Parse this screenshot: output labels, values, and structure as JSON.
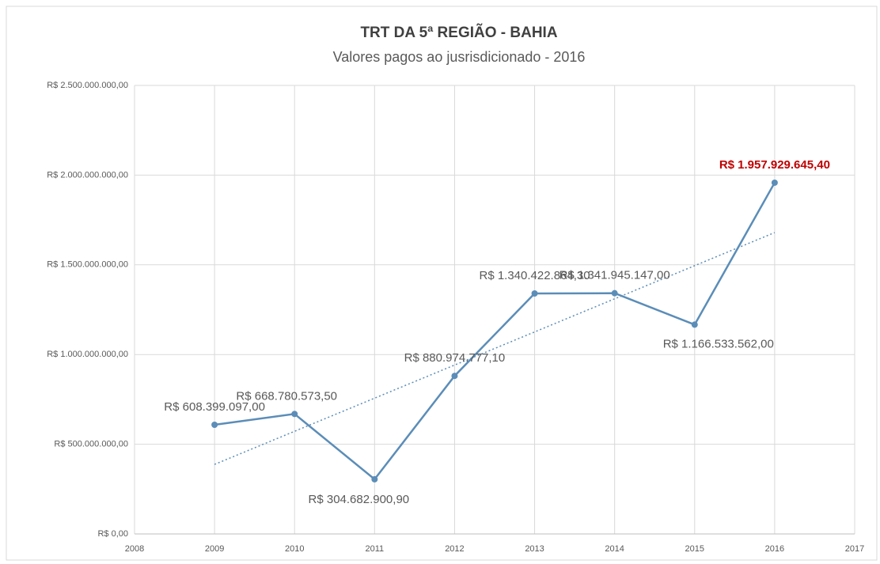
{
  "chart_data": {
    "type": "line",
    "title": "TRT DA 5ª REGIÃO - BAHIA",
    "subtitle": "Valores pagos ao jusrisdicionado - 2016",
    "x": [
      2009,
      2010,
      2011,
      2012,
      2013,
      2014,
      2015,
      2016
    ],
    "series": [
      {
        "color": "#5b8db8",
        "values": [
          608399097.0,
          668780573.5,
          304682900.9,
          880974777.1,
          1340422864.3,
          1341945147.0,
          1166533562.0,
          1957929645.4
        ],
        "value_labels": [
          "R$ 608.399.097,00",
          "R$ 668.780.573,50",
          "R$ 304.682.900,90",
          "R$ 880.974.777,10",
          "R$ 1.340.422.864,30",
          "R$ 1.341.945.147,00",
          "R$ 1.166.533.562,00",
          "R$ 1.957.929.645,40"
        ],
        "value_label_colors": [
          "#595959",
          "#595959",
          "#595959",
          "#595959",
          "#595959",
          "#595959",
          "#595959",
          "#c00000"
        ]
      }
    ],
    "trendline": true,
    "xlim": [
      2008,
      2017
    ],
    "xticks": [
      2008,
      2009,
      2010,
      2011,
      2012,
      2013,
      2014,
      2015,
      2016,
      2017
    ],
    "ylim": [
      0,
      2500000000
    ],
    "yticks": [
      {
        "value": 0,
        "label": "R$ 0,00"
      },
      {
        "value": 500000000,
        "label": "R$ 500.000.000,00"
      },
      {
        "value": 1000000000,
        "label": "R$ 1.000.000.000,00"
      },
      {
        "value": 1500000000,
        "label": "R$ 1.500.000.000,00"
      },
      {
        "value": 2000000000,
        "label": "R$ 2.000.000.000,00"
      },
      {
        "value": 2500000000,
        "label": "R$ 2.500.000.000,00"
      }
    ],
    "grid": true
  }
}
